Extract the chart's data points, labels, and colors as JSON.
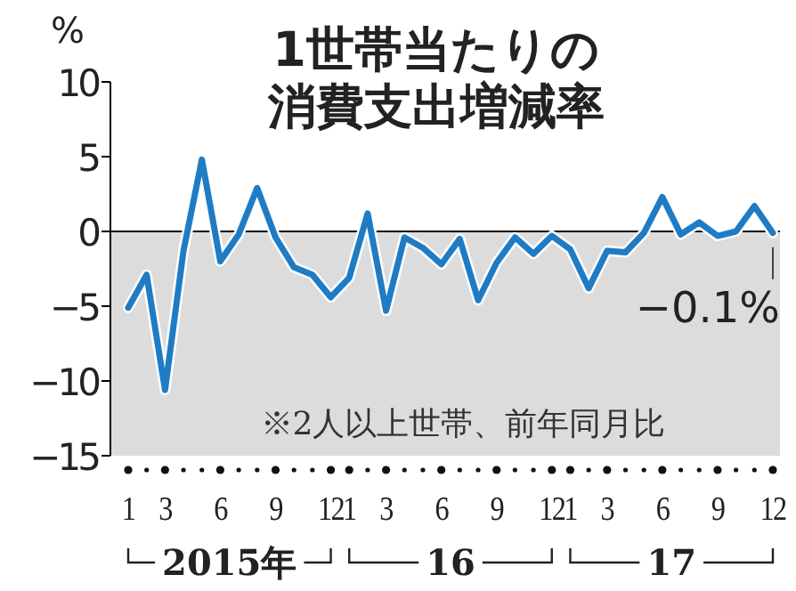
{
  "chart_data": {
    "type": "line",
    "title": "1世帯当たりの消費支出増減率",
    "ylabel": "%",
    "categories": [
      "1",
      null,
      "3",
      null,
      null,
      "6",
      null,
      null,
      "9",
      null,
      null,
      "12",
      "1",
      null,
      "3",
      null,
      null,
      "6",
      null,
      null,
      "9",
      null,
      null,
      "12",
      "1",
      null,
      "3",
      null,
      null,
      "6",
      null,
      null,
      "9",
      null,
      null,
      "12"
    ],
    "series": [
      {
        "color": "#1f7cc4",
        "values": [
          -5.1,
          -2.9,
          -10.6,
          -1.3,
          4.8,
          -2.0,
          -0.2,
          2.9,
          -0.4,
          -2.4,
          -2.9,
          -4.4,
          -3.1,
          1.2,
          -5.3,
          -0.4,
          -1.1,
          -2.2,
          -0.5,
          -4.6,
          -2.1,
          -0.4,
          -1.5,
          -0.3,
          -1.2,
          -3.8,
          -1.3,
          -1.4,
          -0.1,
          2.3,
          -0.2,
          0.6,
          -0.3,
          0.0,
          1.7,
          -0.1
        ]
      }
    ],
    "ylim": [
      -15,
      10
    ],
    "yticks": [
      10,
      5,
      0,
      -5,
      -10,
      -15
    ],
    "bands": [
      {
        "axis": "y",
        "from": -15,
        "to": 0,
        "color": "#dcdcdc"
      }
    ],
    "ref_lines": [
      {
        "axis": "y",
        "value": 0,
        "color": "#000000"
      }
    ],
    "annotations": [
      "※2人以上世帯、前年同月比",
      {
        "text": "−0.1%",
        "y": -0.1
      },
      "2015年",
      "16",
      "17"
    ],
    "grid": false,
    "marker": "none",
    "line_style": "solid"
  }
}
